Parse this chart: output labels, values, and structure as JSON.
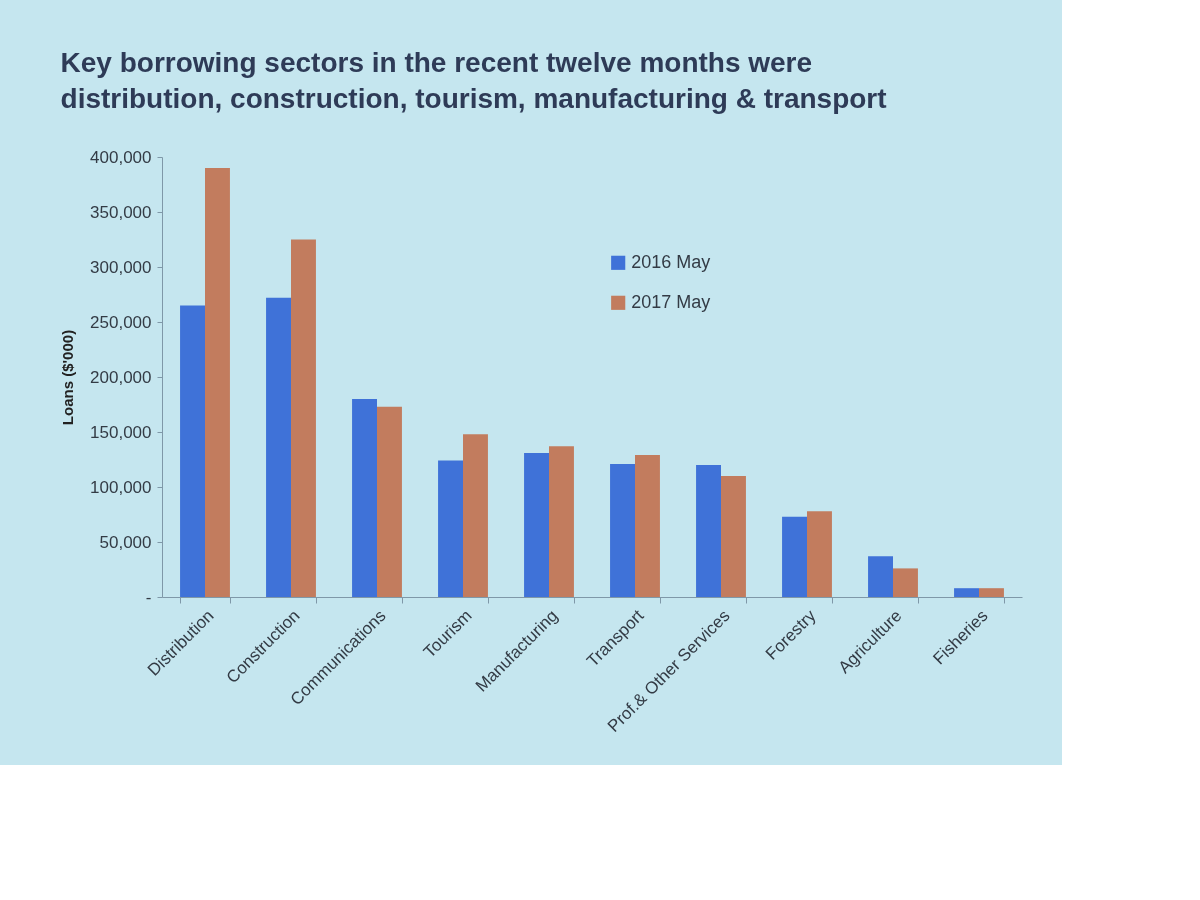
{
  "chart_data": {
    "type": "bar",
    "title": "Key borrowing sectors in the recent twelve months were distribution, construction, tourism, manufacturing & transport",
    "ylabel": "Loans ($'000)",
    "categories": [
      "Distribution",
      "Construction",
      "Communications",
      "Tourism",
      "Manufacturing",
      "Transport",
      "Prof.& Other Services",
      "Forestry",
      "Agriculture",
      "Fisheries"
    ],
    "series": [
      {
        "name": "2016 May",
        "color": "#3f72d8",
        "values": [
          265000,
          272000,
          180000,
          124000,
          131000,
          121000,
          120000,
          73000,
          37000,
          8000
        ]
      },
      {
        "name": "2017 May",
        "color": "#c27c5e",
        "values": [
          390000,
          325000,
          173000,
          148000,
          137000,
          129000,
          110000,
          78000,
          26000,
          8000
        ]
      }
    ],
    "ylim": [
      0,
      400000
    ],
    "yticks": [
      {
        "value": 0,
        "label": "-"
      },
      {
        "value": 50000,
        "label": "50,000"
      },
      {
        "value": 100000,
        "label": "100,000"
      },
      {
        "value": 150000,
        "label": "150,000"
      },
      {
        "value": 200000,
        "label": "200,000"
      },
      {
        "value": 250000,
        "label": "250,000"
      },
      {
        "value": 300000,
        "label": "300,000"
      },
      {
        "value": 350000,
        "label": "350,000"
      },
      {
        "value": 400000,
        "label": "400,000"
      }
    ],
    "legend": "top right"
  }
}
